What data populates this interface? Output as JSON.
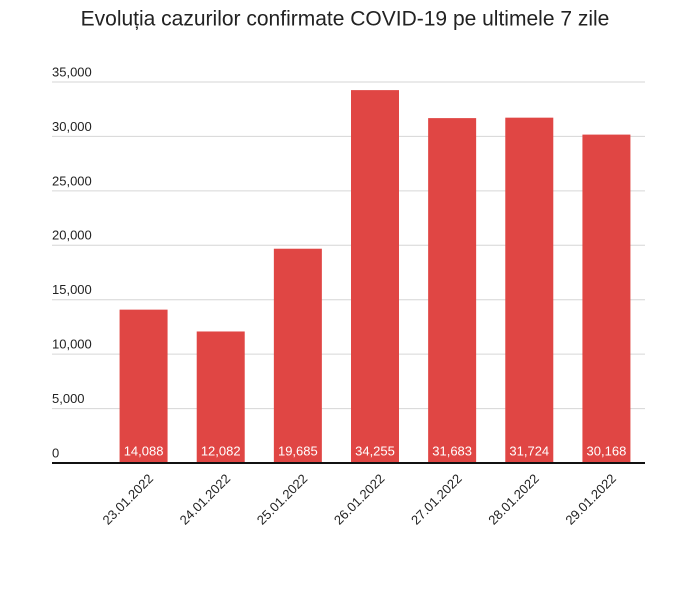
{
  "chart_data": {
    "type": "bar",
    "title": "Evoluția cazurilor confirmate COVID-19 pe ultimele 7 zile",
    "categories": [
      "23.01.2022",
      "24.01.2022",
      "25.01.2022",
      "26.01.2022",
      "27.01.2022",
      "28.01.2022",
      "29.01.2022"
    ],
    "values": [
      14088,
      12082,
      19685,
      34255,
      31683,
      31724,
      30168
    ],
    "value_labels": [
      "14,088",
      "12,082",
      "19,685",
      "34,255",
      "31,683",
      "31,724",
      "30,168"
    ],
    "color": "#e04644",
    "ylim": [
      0,
      35000
    ],
    "yticks": [
      0,
      {
        "value": 5000,
        "label": "5,000"
      },
      {
        "value": 10000,
        "label": "10,000"
      },
      {
        "value": 15000,
        "label": "15,000"
      },
      {
        "value": 20000,
        "label": "20,000"
      },
      {
        "value": 25000,
        "label": "25,000"
      },
      {
        "value": 30000,
        "label": "30,000"
      },
      {
        "value": 35000,
        "label": "35,000"
      }
    ],
    "grid": true
  }
}
